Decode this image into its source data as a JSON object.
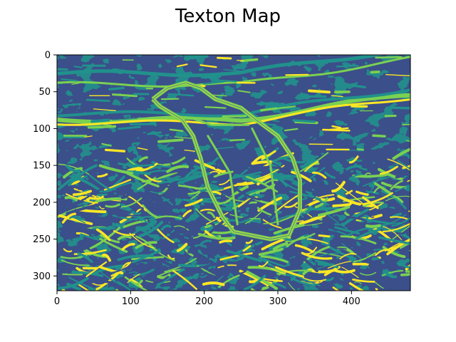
{
  "chart_data": {
    "type": "heatmap",
    "title": "Texton Map",
    "xlabel": "",
    "ylabel": "",
    "image_width": 480,
    "image_height": 320,
    "xlim": [
      0,
      480
    ],
    "ylim": [
      320,
      0
    ],
    "x_ticks": [
      0,
      100,
      200,
      300,
      400
    ],
    "y_ticks": [
      0,
      50,
      100,
      150,
      200,
      250,
      300
    ],
    "grid": false,
    "legend": "none",
    "colormap": "viridis",
    "texton_classes": 4,
    "class_colors": [
      "#440154",
      "#3b4f8a",
      "#21918c",
      "#7ad151",
      "#fde725"
    ],
    "background_color": "#3b4f8a"
  }
}
